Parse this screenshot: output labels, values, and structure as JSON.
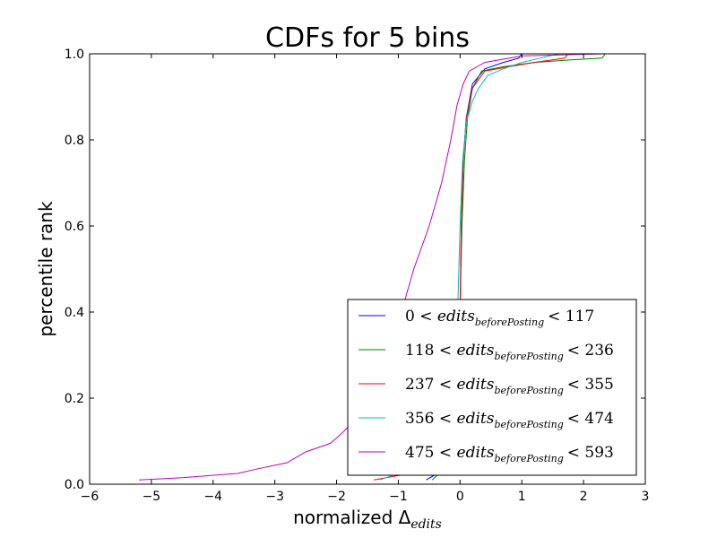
{
  "chart_data": {
    "type": "line",
    "title": "CDFs for 5 bins",
    "xlabel_main": "normalized ",
    "xlabel_delta": "Δ",
    "xlabel_sub": "edits",
    "ylabel": "percentile rank",
    "xlim": [
      -6,
      3
    ],
    "ylim": [
      0,
      1
    ],
    "xticks": [
      -6,
      -5,
      -4,
      -3,
      -2,
      -1,
      0,
      1,
      2,
      3
    ],
    "yticks": [
      0.0,
      0.2,
      0.4,
      0.6,
      0.8,
      1.0
    ],
    "xtick_labels": [
      "−6",
      "−5",
      "−4",
      "−3",
      "−2",
      "−1",
      "0",
      "1",
      "2",
      "3"
    ],
    "ytick_labels": [
      "0.0",
      "0.2",
      "0.4",
      "0.6",
      "0.8",
      "1.0"
    ],
    "grid": false,
    "legend_position": "lower-right",
    "series": [
      {
        "legend_pre": "0 ",
        "legend_var": "< edits",
        "legend_sub": "beforePosting",
        "legend_post": "< 117",
        "color": "#0000ff",
        "points": [
          [
            -0.55,
            0.01
          ],
          [
            -0.3,
            0.03
          ],
          [
            -0.1,
            0.08
          ],
          [
            -0.03,
            0.25
          ],
          [
            0.0,
            0.4
          ],
          [
            0.02,
            0.6
          ],
          [
            0.05,
            0.75
          ],
          [
            0.1,
            0.85
          ],
          [
            0.2,
            0.93
          ],
          [
            0.4,
            0.965
          ],
          [
            0.7,
            0.98
          ],
          [
            0.95,
            0.99
          ],
          [
            1.0,
            1.0
          ],
          [
            2.35,
            1.0
          ]
        ]
      },
      {
        "legend_pre": "118 ",
        "legend_var": "< edits",
        "legend_sub": "beforePosting",
        "legend_post": "< 236",
        "color": "#008000",
        "points": [
          [
            -0.45,
            0.01
          ],
          [
            -0.3,
            0.03
          ],
          [
            -0.1,
            0.08
          ],
          [
            -0.03,
            0.2
          ],
          [
            0.0,
            0.4
          ],
          [
            0.03,
            0.6
          ],
          [
            0.07,
            0.75
          ],
          [
            0.12,
            0.85
          ],
          [
            0.2,
            0.92
          ],
          [
            0.35,
            0.96
          ],
          [
            0.7,
            0.97
          ],
          [
            1.2,
            0.98
          ],
          [
            1.7,
            0.985
          ],
          [
            2.3,
            0.99
          ],
          [
            2.35,
            1.0
          ]
        ]
      },
      {
        "legend_pre": "237 ",
        "legend_var": "< edits",
        "legend_sub": "beforePosting",
        "legend_post": "< 355",
        "color": "#ff0000",
        "points": [
          [
            -1.4,
            0.01
          ],
          [
            -1.0,
            0.02
          ],
          [
            -0.5,
            0.03
          ],
          [
            -0.15,
            0.06
          ],
          [
            -0.03,
            0.2
          ],
          [
            0.0,
            0.4
          ],
          [
            0.02,
            0.6
          ],
          [
            0.05,
            0.75
          ],
          [
            0.1,
            0.85
          ],
          [
            0.2,
            0.92
          ],
          [
            0.4,
            0.96
          ],
          [
            0.8,
            0.97
          ],
          [
            1.2,
            0.98
          ],
          [
            1.7,
            0.99
          ],
          [
            1.75,
            1.0
          ],
          [
            2.35,
            1.0
          ]
        ]
      },
      {
        "legend_pre": "356 ",
        "legend_var": "< edits",
        "legend_sub": "beforePosting",
        "legend_post": "< 474",
        "color": "#00bfbf",
        "points": [
          [
            -1.3,
            0.01
          ],
          [
            -0.9,
            0.03
          ],
          [
            -0.4,
            0.06
          ],
          [
            -0.1,
            0.15
          ],
          [
            -0.04,
            0.4
          ],
          [
            0.0,
            0.6
          ],
          [
            0.04,
            0.75
          ],
          [
            0.1,
            0.84
          ],
          [
            0.2,
            0.89
          ],
          [
            0.3,
            0.92
          ],
          [
            0.45,
            0.95
          ],
          [
            0.7,
            0.965
          ],
          [
            1.0,
            0.98
          ],
          [
            1.3,
            0.99
          ],
          [
            1.6,
            1.0
          ],
          [
            2.35,
            1.0
          ]
        ]
      },
      {
        "legend_pre": "475 ",
        "legend_var": "< edits",
        "legend_sub": "beforePosting",
        "legend_post": "< 593",
        "color": "#bf00bf",
        "points": [
          [
            -5.2,
            0.01
          ],
          [
            -4.5,
            0.015
          ],
          [
            -3.6,
            0.025
          ],
          [
            -3.3,
            0.035
          ],
          [
            -2.8,
            0.05
          ],
          [
            -2.5,
            0.075
          ],
          [
            -2.1,
            0.095
          ],
          [
            -1.9,
            0.12
          ],
          [
            -1.7,
            0.15
          ],
          [
            -1.3,
            0.2
          ],
          [
            -1.15,
            0.3
          ],
          [
            -0.95,
            0.4
          ],
          [
            -0.75,
            0.5
          ],
          [
            -0.5,
            0.6
          ],
          [
            -0.3,
            0.7
          ],
          [
            -0.15,
            0.8
          ],
          [
            -0.05,
            0.88
          ],
          [
            0.05,
            0.93
          ],
          [
            0.15,
            0.96
          ],
          [
            0.4,
            0.98
          ],
          [
            1.0,
            0.995
          ],
          [
            2.35,
            1.0
          ]
        ]
      }
    ]
  }
}
